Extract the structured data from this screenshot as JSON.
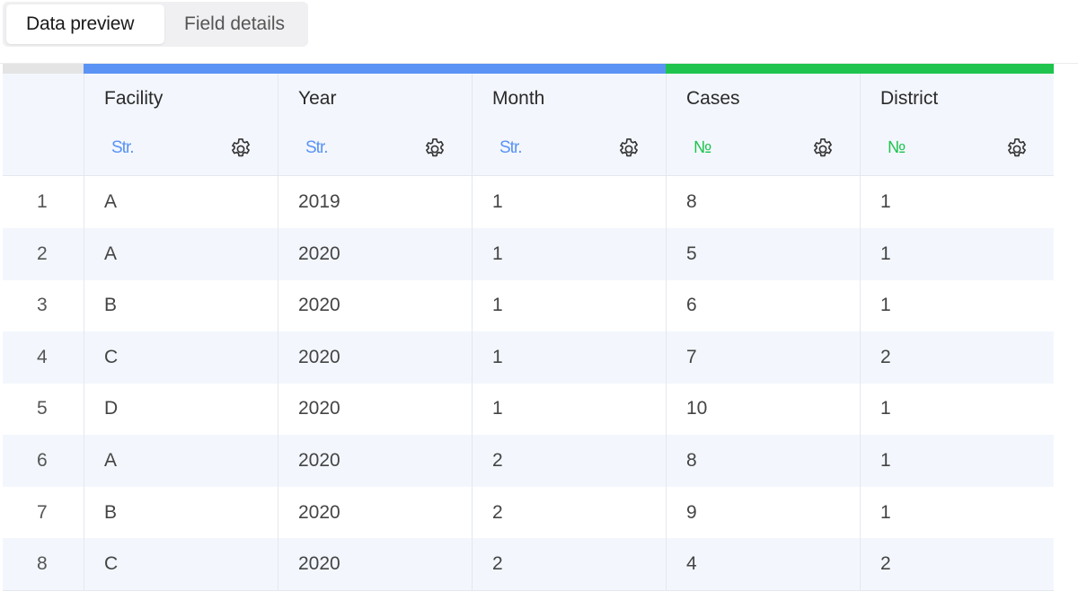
{
  "tabs": [
    {
      "label": "Data preview",
      "active": true
    },
    {
      "label": "Field details",
      "active": false
    }
  ],
  "colors": {
    "string_accent": "#5b93f5",
    "number_accent": "#1fc44e",
    "header_bg": "#f3f7fd",
    "index_bar": "#e4e4e4"
  },
  "columns": [
    {
      "name": "Facility",
      "type_label": "Str.",
      "type": "string",
      "icon": "gear-icon"
    },
    {
      "name": "Year",
      "type_label": "Str.",
      "type": "string",
      "icon": "gear-icon"
    },
    {
      "name": "Month",
      "type_label": "Str.",
      "type": "string",
      "icon": "gear-icon"
    },
    {
      "name": "Cases",
      "type_label": "№",
      "type": "number",
      "icon": "gear-icon"
    },
    {
      "name": "District",
      "type_label": "№",
      "type": "number",
      "icon": "gear-icon"
    }
  ],
  "rows": [
    {
      "index": "1",
      "cells": [
        "A",
        "2019",
        "1",
        "8",
        "1"
      ]
    },
    {
      "index": "2",
      "cells": [
        "A",
        "2020",
        "1",
        "5",
        "1"
      ]
    },
    {
      "index": "3",
      "cells": [
        "B",
        "2020",
        "1",
        "6",
        "1"
      ]
    },
    {
      "index": "4",
      "cells": [
        "C",
        "2020",
        "1",
        "7",
        "2"
      ]
    },
    {
      "index": "5",
      "cells": [
        "D",
        "2020",
        "1",
        "10",
        "1"
      ]
    },
    {
      "index": "6",
      "cells": [
        "A",
        "2020",
        "2",
        "8",
        "1"
      ]
    },
    {
      "index": "7",
      "cells": [
        "B",
        "2020",
        "2",
        "9",
        "1"
      ]
    },
    {
      "index": "8",
      "cells": [
        "C",
        "2020",
        "2",
        "4",
        "2"
      ]
    }
  ]
}
